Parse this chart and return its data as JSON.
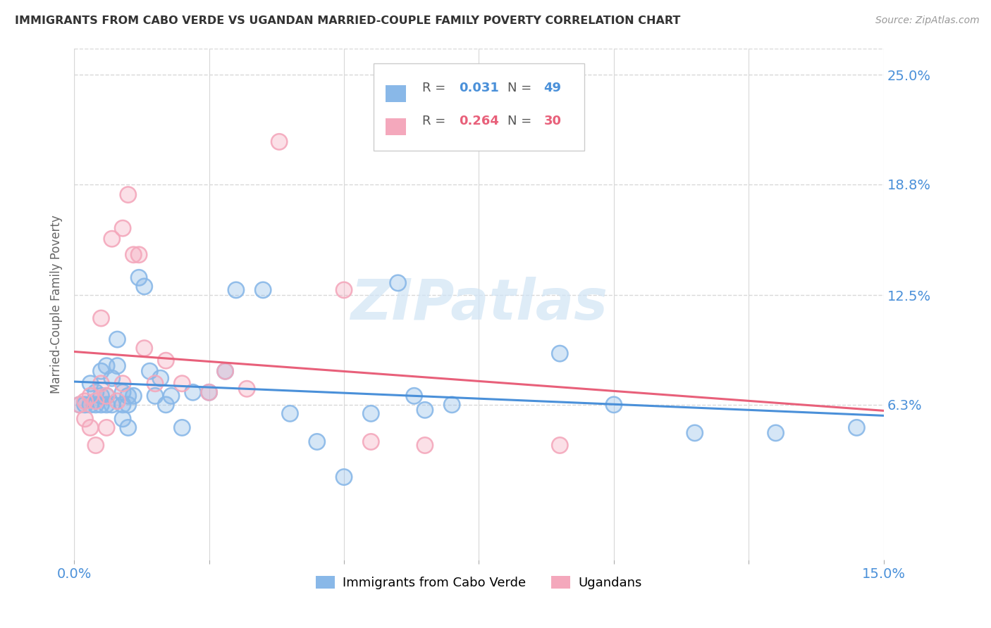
{
  "title": "IMMIGRANTS FROM CABO VERDE VS UGANDAN MARRIED-COUPLE FAMILY POVERTY CORRELATION CHART",
  "source": "Source: ZipAtlas.com",
  "ylabel": "Married-Couple Family Poverty",
  "xlim": [
    0.0,
    0.15
  ],
  "ylim": [
    -0.025,
    0.265
  ],
  "series1_label": "Immigrants from Cabo Verde",
  "series1_color": "#89B8E8",
  "series1_edge": "#89B8E8",
  "series1_R": "0.031",
  "series1_N": "49",
  "series2_label": "Ugandans",
  "series2_color": "#F4A8BC",
  "series2_edge": "#F4A8BC",
  "series2_R": "0.264",
  "series2_N": "30",
  "line1_color": "#4A90D9",
  "line2_color": "#E8607A",
  "series1_x": [
    0.001,
    0.002,
    0.003,
    0.003,
    0.004,
    0.004,
    0.005,
    0.005,
    0.005,
    0.006,
    0.006,
    0.006,
    0.007,
    0.007,
    0.008,
    0.008,
    0.009,
    0.009,
    0.009,
    0.01,
    0.01,
    0.01,
    0.011,
    0.012,
    0.013,
    0.014,
    0.015,
    0.016,
    0.017,
    0.018,
    0.02,
    0.022,
    0.025,
    0.028,
    0.03,
    0.035,
    0.04,
    0.045,
    0.05,
    0.055,
    0.06,
    0.063,
    0.065,
    0.07,
    0.09,
    0.1,
    0.115,
    0.13,
    0.145
  ],
  "series1_y": [
    0.063,
    0.063,
    0.075,
    0.063,
    0.07,
    0.063,
    0.082,
    0.068,
    0.063,
    0.085,
    0.068,
    0.063,
    0.078,
    0.063,
    0.1,
    0.085,
    0.07,
    0.063,
    0.055,
    0.068,
    0.063,
    0.05,
    0.068,
    0.135,
    0.13,
    0.082,
    0.068,
    0.078,
    0.063,
    0.068,
    0.05,
    0.07,
    0.07,
    0.082,
    0.128,
    0.128,
    0.058,
    0.042,
    0.022,
    0.058,
    0.132,
    0.068,
    0.06,
    0.063,
    0.092,
    0.063,
    0.047,
    0.047,
    0.05
  ],
  "series2_x": [
    0.001,
    0.002,
    0.002,
    0.003,
    0.003,
    0.004,
    0.004,
    0.005,
    0.005,
    0.006,
    0.006,
    0.007,
    0.008,
    0.009,
    0.009,
    0.01,
    0.011,
    0.012,
    0.013,
    0.015,
    0.017,
    0.02,
    0.025,
    0.028,
    0.032,
    0.038,
    0.05,
    0.055,
    0.065,
    0.09
  ],
  "series2_y": [
    0.063,
    0.065,
    0.055,
    0.068,
    0.05,
    0.065,
    0.04,
    0.112,
    0.075,
    0.068,
    0.05,
    0.157,
    0.065,
    0.163,
    0.075,
    0.182,
    0.148,
    0.148,
    0.095,
    0.075,
    0.088,
    0.075,
    0.07,
    0.082,
    0.072,
    0.212,
    0.128,
    0.042,
    0.04,
    0.04
  ],
  "ytick_positions": [
    0.063,
    0.125,
    0.188,
    0.25
  ],
  "ytick_labels": [
    "6.3%",
    "12.5%",
    "18.8%",
    "25.0%"
  ],
  "xtick_labels": [
    "0.0%",
    "15.0%"
  ],
  "background_color": "#ffffff",
  "grid_color": "#d8d8d8",
  "title_color": "#333333",
  "axis_label_color": "#666666",
  "tick_label_color": "#4A90D9",
  "watermark": "ZIPatlas",
  "watermark_color": "#d0e4f5"
}
